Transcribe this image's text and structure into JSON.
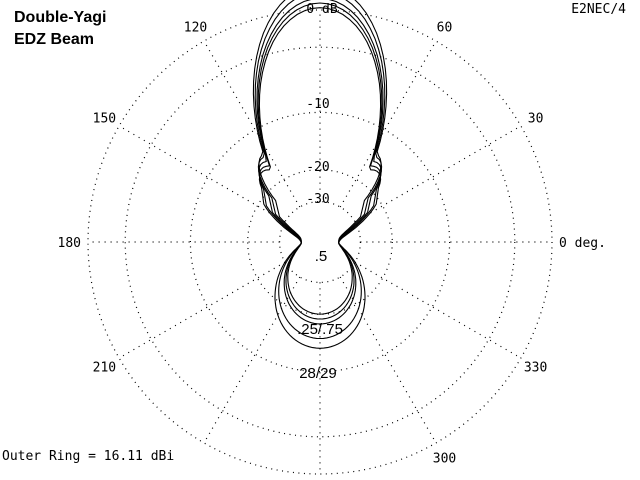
{
  "chart_data": {
    "type": "polar",
    "title": [
      "Double-Yagi",
      "EDZ Beam"
    ],
    "software_label": "E2NEC/4",
    "outer_ring_label": "Outer Ring = 16.11 dBi",
    "angle_tick_labels": [
      {
        "angle_deg": 0,
        "label": "0 deg."
      },
      {
        "angle_deg": 30,
        "label": "30"
      },
      {
        "angle_deg": 60,
        "label": "60"
      },
      {
        "angle_deg": 120,
        "label": "120"
      },
      {
        "angle_deg": 150,
        "label": "150"
      },
      {
        "angle_deg": 180,
        "label": "180"
      },
      {
        "angle_deg": 210,
        "label": "210"
      },
      {
        "angle_deg": 300,
        "label": "300"
      },
      {
        "angle_deg": 330,
        "label": "330"
      }
    ],
    "ring_labels": [
      "0 dB",
      "-10",
      "-20",
      "-30"
    ],
    "ring_levels_db": [
      0,
      -3,
      -10,
      -20,
      -30
    ],
    "grid": true,
    "main_lobe_direction_deg": 90,
    "annotations": [
      ".5",
      ".25/.75",
      "28/29"
    ],
    "series": [
      {
        "main_lobe_width": 0.88,
        "back_lobe": 0.55,
        "side_lobe": 0.5,
        "side_lobe_angle_deg": 135
      },
      {
        "main_lobe_width": 0.9,
        "back_lobe": 0.6,
        "side_lobe": 0.52,
        "side_lobe_angle_deg": 133
      },
      {
        "main_lobe_width": 0.92,
        "back_lobe": 0.65,
        "side_lobe": 0.55,
        "side_lobe_angle_deg": 131
      },
      {
        "main_lobe_width": 0.95,
        "back_lobe": 0.8,
        "side_lobe": 0.58,
        "side_lobe_angle_deg": 129
      },
      {
        "main_lobe_width": 0.98,
        "back_lobe": 0.9,
        "side_lobe": 0.6,
        "side_lobe_angle_deg": 127
      }
    ]
  }
}
